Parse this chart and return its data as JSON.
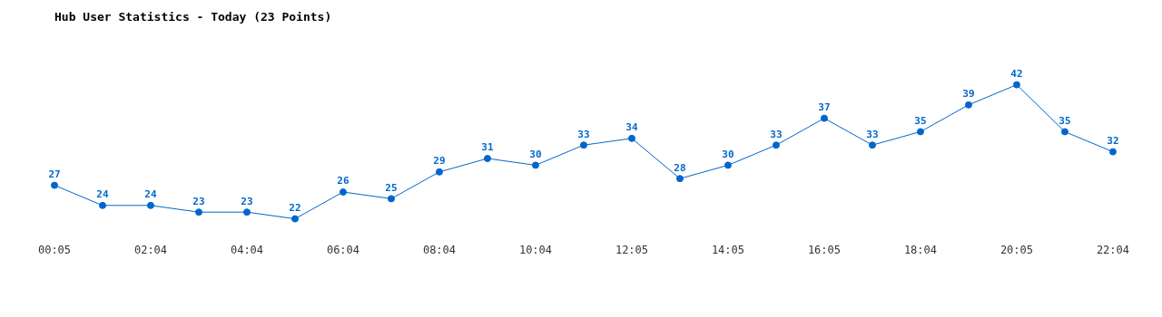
{
  "chart_data": {
    "type": "line",
    "title": "Hub User Statistics - Today (23 Points)",
    "categories": [
      "00:05",
      null,
      "02:04",
      null,
      "04:04",
      null,
      "06:04",
      null,
      "08:04",
      null,
      "10:04",
      null,
      "12:05",
      null,
      "14:05",
      null,
      "16:05",
      null,
      "18:04",
      null,
      "20:05",
      null,
      "22:04"
    ],
    "series": [
      {
        "color": "#0066cc",
        "values": [
          27,
          24,
          24,
          23,
          23,
          22,
          26,
          25,
          29,
          31,
          30,
          33,
          34,
          28,
          30,
          33,
          37,
          33,
          35,
          39,
          42,
          35,
          32
        ]
      }
    ],
    "data_labels": true,
    "marker": "circle",
    "grid": false
  }
}
